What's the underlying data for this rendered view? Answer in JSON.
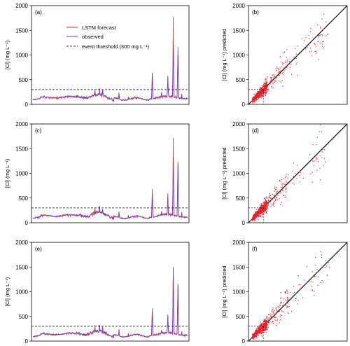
{
  "legend": {
    "forecast": "LSTM forecast",
    "observed": "observed",
    "threshold": "event threshold (300 mg L⁻¹)"
  },
  "colors": {
    "forecast": "#e8202a",
    "observed": "#4a3fd6",
    "threshold": "#000000",
    "diag": "#000000"
  },
  "chart_data": [
    {
      "type": "line",
      "panel": "(a)",
      "ylabel": "[Cl] (mg L⁻¹)",
      "ylim": [
        0,
        2000
      ],
      "yticks": [
        0,
        500,
        1000,
        1500,
        2000
      ],
      "threshold": 300,
      "series": [
        {
          "name": "LSTM forecast",
          "peak": 1780
        },
        {
          "name": "observed",
          "peak": 1200
        }
      ]
    },
    {
      "type": "scatter",
      "panel": "(b)",
      "ylabel": "[Cl] (mg L⁻¹) predicted",
      "xlim": [
        0,
        2000
      ],
      "ylim": [
        0,
        2000
      ],
      "yticks": [
        0,
        500,
        1000,
        1500,
        2000
      ]
    },
    {
      "type": "line",
      "panel": "(c)",
      "ylabel": "[Cl] (mg L⁻¹)",
      "ylim": [
        0,
        2000
      ],
      "yticks": [
        0,
        500,
        1000,
        1500,
        2000
      ],
      "threshold": 300,
      "series": [
        {
          "name": "LSTM forecast",
          "peak": 1720
        },
        {
          "name": "observed",
          "peak": 1200
        }
      ]
    },
    {
      "type": "scatter",
      "panel": "(d)",
      "ylabel": "[Cl] (mg L⁻¹) predicted",
      "xlim": [
        0,
        2000
      ],
      "ylim": [
        0,
        2000
      ],
      "yticks": [
        0,
        500,
        1000,
        1500,
        2000
      ]
    },
    {
      "type": "line",
      "panel": "(e)",
      "ylabel": "[Cl] (mg L⁻¹)",
      "ylim": [
        0,
        2000
      ],
      "yticks": [
        0,
        500,
        1000,
        1500,
        2000
      ],
      "threshold": 300,
      "series": [
        {
          "name": "LSTM forecast",
          "peak": 1480
        },
        {
          "name": "observed",
          "peak": 1500
        }
      ]
    },
    {
      "type": "scatter",
      "panel": "(f)",
      "ylabel": "[Cl] (mg L⁻¹) predicted",
      "xlim": [
        0,
        2000
      ],
      "ylim": [
        0,
        2000
      ],
      "yticks": [
        0,
        500,
        1000,
        1500,
        2000
      ]
    }
  ]
}
